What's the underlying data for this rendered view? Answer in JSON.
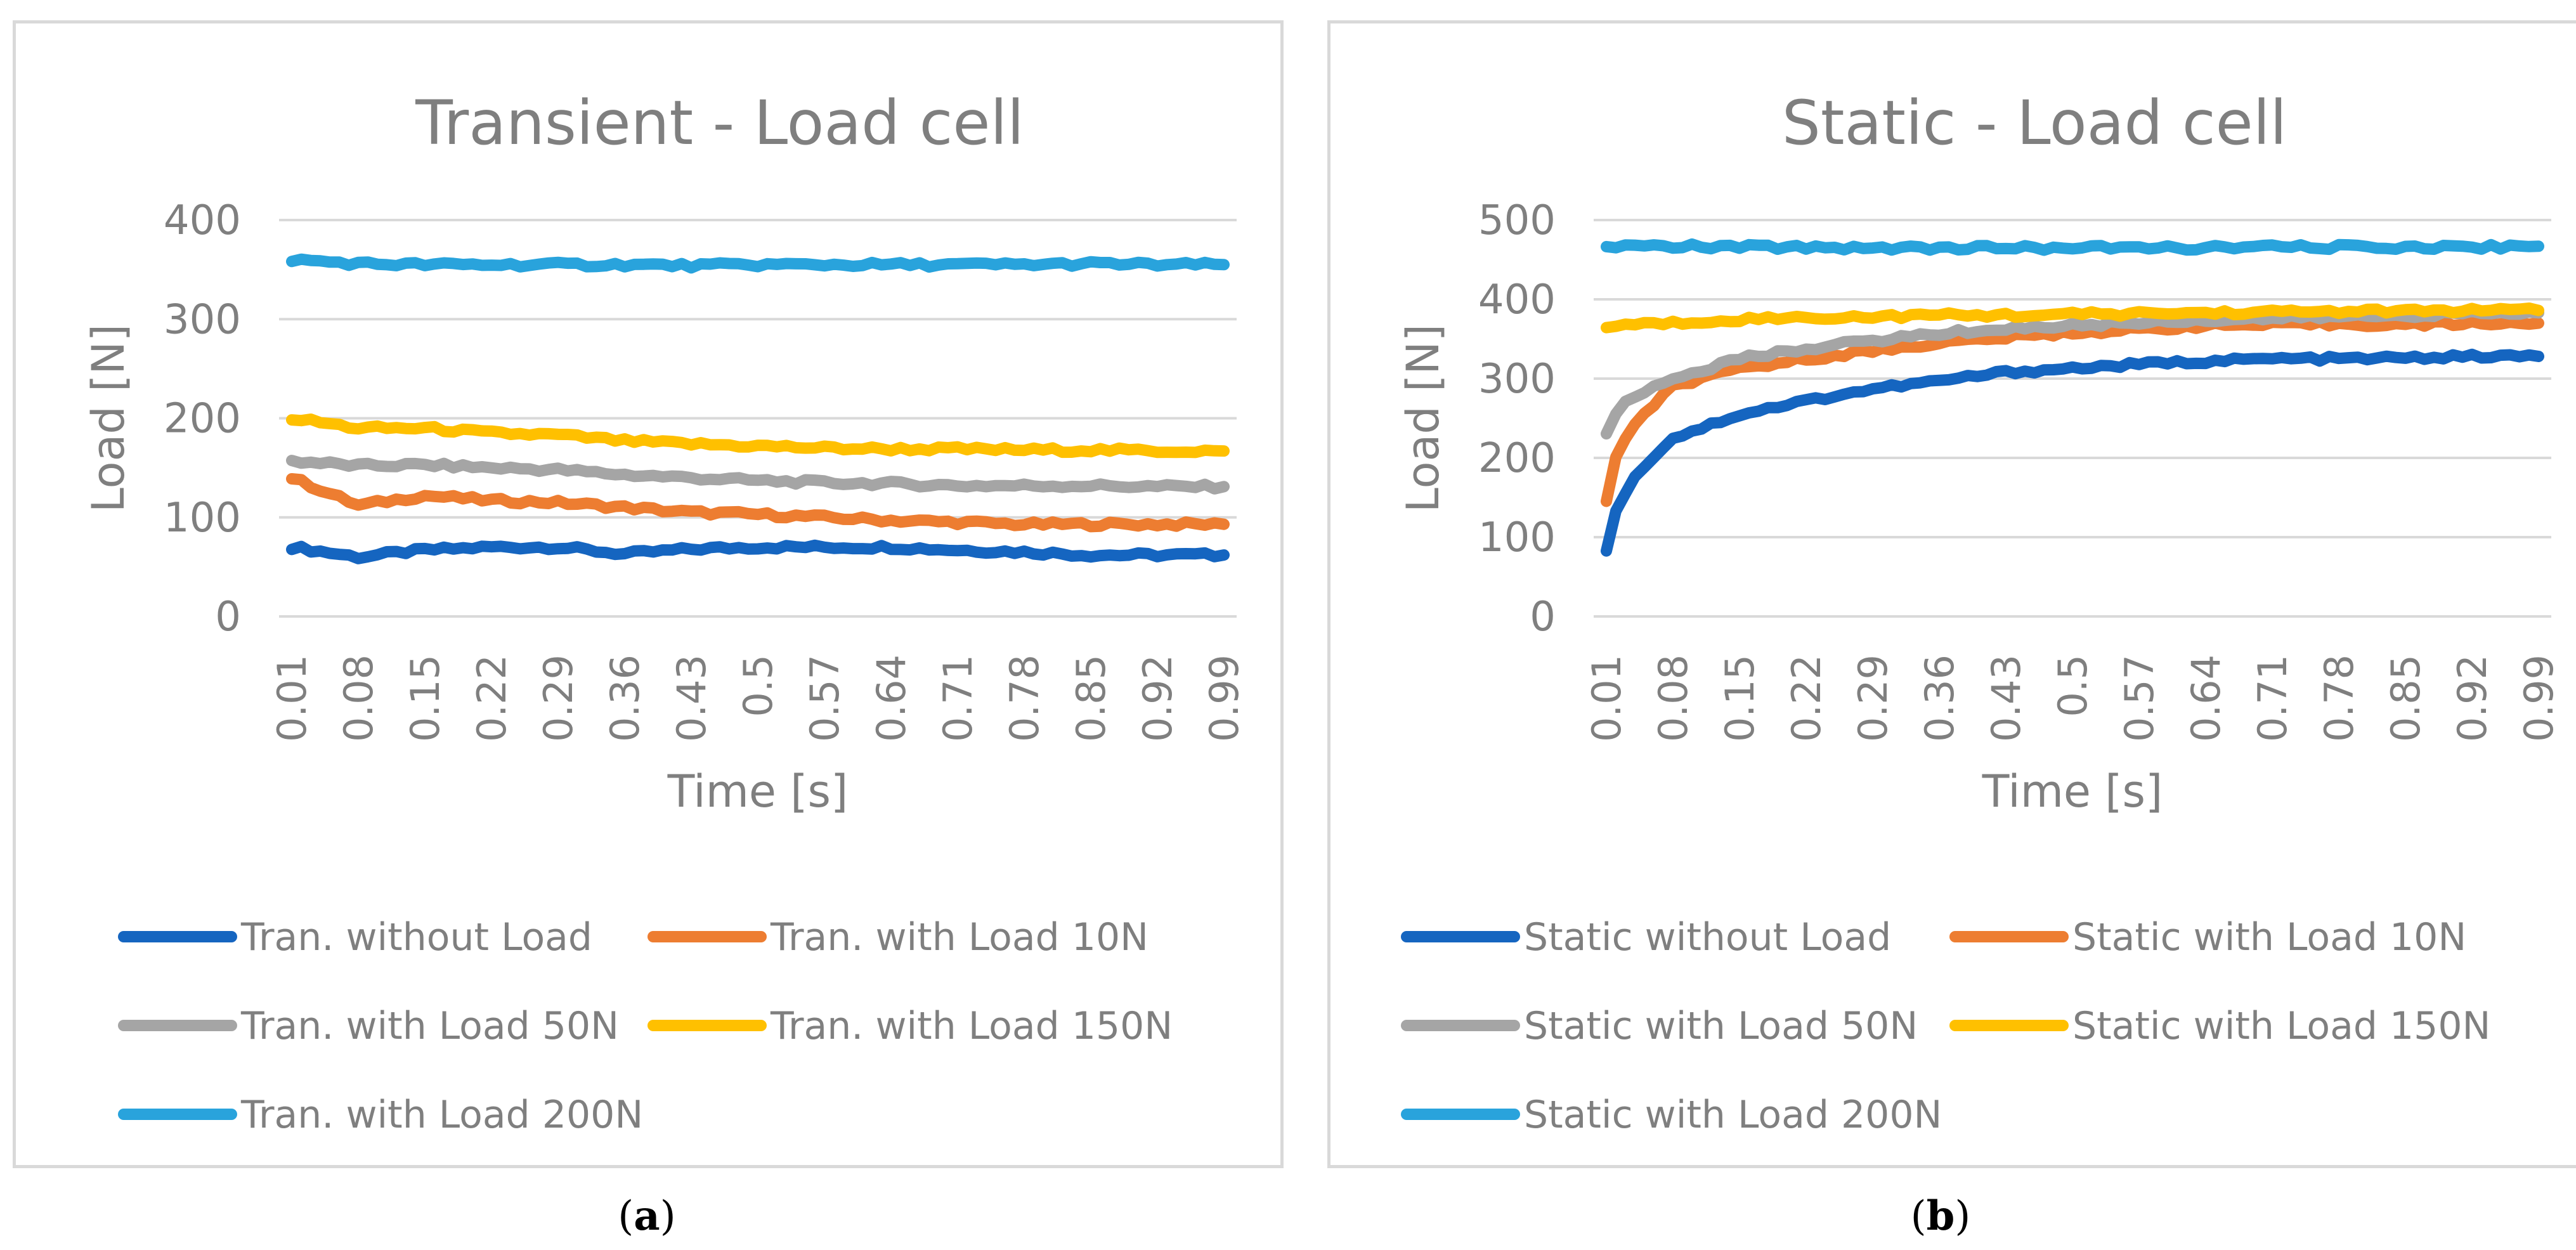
{
  "chart_data": [
    {
      "id": "a",
      "type": "line",
      "title": "Transient - Load cell",
      "xlabel": "Time [s]",
      "ylabel": "Load  [N]",
      "ylim": [
        0,
        400
      ],
      "yticks": [
        0,
        100,
        200,
        300,
        400
      ],
      "grid": true,
      "legend_position": "bottom",
      "categories": [
        "0.01",
        "0.08",
        "0.15",
        "0.22",
        "0.29",
        "0.36",
        "0.43",
        "0.5",
        "0.57",
        "0.64",
        "0.71",
        "0.78",
        "0.85",
        "0.92",
        "0.99"
      ],
      "series": [
        {
          "name": "Tran. without Load",
          "color": "#1565c0",
          "values": [
            70,
            60,
            67,
            70,
            70,
            63,
            68,
            70,
            70,
            70,
            67,
            65,
            62,
            62,
            62
          ]
        },
        {
          "name": "Tran. with Load 10N",
          "color": "#ed7d31",
          "values": [
            140,
            112,
            122,
            117,
            115,
            110,
            105,
            103,
            100,
            97,
            95,
            93,
            93,
            93,
            93
          ]
        },
        {
          "name": "Tran. with Load 50N",
          "color": "#a5a5a5",
          "values": [
            157,
            152,
            153,
            150,
            148,
            143,
            140,
            137,
            135,
            134,
            132,
            132,
            132,
            131,
            131
          ]
        },
        {
          "name": "Tran. with Load 150N",
          "color": "#ffc000",
          "values": [
            200,
            190,
            190,
            185,
            183,
            177,
            174,
            172,
            170,
            169,
            169,
            168,
            168,
            167,
            167
          ]
        },
        {
          "name": "Tran. with Load 200N",
          "color": "#29a3dc",
          "values": [
            360,
            356,
            355,
            355,
            355,
            355,
            354,
            355,
            355,
            355,
            355,
            355,
            356,
            355,
            355
          ]
        }
      ],
      "caption": "a"
    },
    {
      "id": "b",
      "type": "line",
      "title": "Static - Load cell",
      "xlabel": "Time [s]",
      "ylabel": "Load  [N]",
      "ylim": [
        0,
        500
      ],
      "yticks": [
        0,
        100,
        200,
        300,
        400,
        500
      ],
      "grid": true,
      "legend_position": "bottom",
      "categories": [
        "0.01",
        "0.08",
        "0.15",
        "0.22",
        "0.29",
        "0.36",
        "0.43",
        "0.5",
        "0.57",
        "0.64",
        "0.71",
        "0.78",
        "0.85",
        "0.92",
        "0.99"
      ],
      "series": [
        {
          "name": "Static without Load",
          "color": "#1565c0",
          "values": [
            80,
            225,
            255,
            272,
            287,
            297,
            308,
            313,
            318,
            322,
            325,
            325,
            326,
            328,
            328
          ]
        },
        {
          "name": "Static with Load 10N",
          "color": "#ed7d31",
          "values": [
            145,
            290,
            312,
            325,
            335,
            345,
            352,
            358,
            362,
            367,
            368,
            369,
            368,
            370,
            370
          ]
        },
        {
          "name": "Static with Load 50N",
          "color": "#a5a5a5",
          "values": [
            232,
            300,
            325,
            338,
            348,
            357,
            363,
            367,
            371,
            374,
            376,
            378,
            380,
            382,
            383
          ]
        },
        {
          "name": "Static with Load 150N",
          "color": "#ffc000",
          "values": [
            365,
            370,
            375,
            377,
            378,
            380,
            380,
            381,
            382,
            383,
            384,
            385,
            385,
            386,
            386
          ]
        },
        {
          "name": "Static with Load 200N",
          "color": "#29a3dc",
          "values": [
            467,
            467,
            466,
            466,
            465,
            465,
            465,
            465,
            465,
            465,
            466,
            466,
            466,
            466,
            467
          ]
        }
      ],
      "caption": "b"
    }
  ],
  "captions": {
    "open": "(",
    "a": "a",
    "b": "b",
    "close": ")"
  }
}
